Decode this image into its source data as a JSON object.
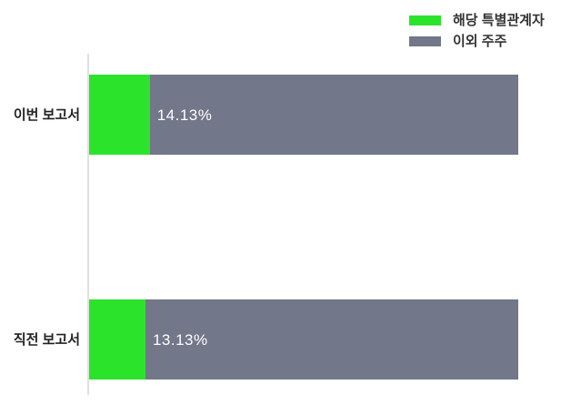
{
  "colors": {
    "green": "#2CE32C",
    "gray": "#727789",
    "axis_line": "#E0E0E0",
    "category_text": "#222222",
    "legend_text": "#333333",
    "value_text": "#FFFFFF",
    "background": "#FFFFFF"
  },
  "legend": {
    "items": [
      {
        "label": "해당 특별관계자",
        "color": "#2CE32C"
      },
      {
        "label": "이외 주주",
        "color": "#727789"
      }
    ],
    "position": "top-right"
  },
  "chart_data": {
    "type": "bar",
    "orientation": "horizontal",
    "stacked": true,
    "title": "",
    "xlabel": "",
    "ylabel": "",
    "xlim": [
      0,
      100
    ],
    "grid": false,
    "legend_position": "top-right",
    "categories": [
      "이번 보고서",
      "직전 보고서"
    ],
    "series": [
      {
        "name": "해당 특별관계자",
        "color": "#2CE32C",
        "values": [
          14.13,
          13.13
        ]
      },
      {
        "name": "이외 주주",
        "color": "#727789",
        "values": [
          85.87,
          86.87
        ]
      }
    ],
    "value_labels": [
      "14.13%",
      "13.13%"
    ]
  }
}
